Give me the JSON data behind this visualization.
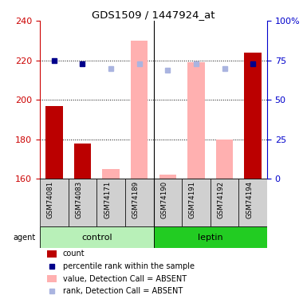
{
  "title": "GDS1509 / 1447924_at",
  "samples": [
    "GSM74081",
    "GSM74083",
    "GSM74171",
    "GSM74189",
    "GSM74190",
    "GSM74191",
    "GSM74192",
    "GSM74194"
  ],
  "red_values": [
    197,
    178,
    null,
    null,
    null,
    null,
    null,
    224
  ],
  "pink_values": [
    null,
    null,
    165,
    230,
    162,
    219,
    180,
    null
  ],
  "blue_values": [
    75,
    73,
    null,
    null,
    null,
    null,
    null,
    73
  ],
  "light_blue_values": [
    null,
    null,
    70,
    73,
    69,
    73,
    70,
    null
  ],
  "ylim": [
    160,
    240
  ],
  "yticks_left": [
    160,
    180,
    200,
    220,
    240
  ],
  "yticks_right": [
    0,
    25,
    50,
    75,
    100
  ],
  "bar_width": 0.6,
  "control_color_light": "#b8f0b8",
  "control_color": "#55dd55",
  "leptin_color": "#22cc22",
  "left_axis_color": "#cc0000",
  "right_axis_color": "#0000cc",
  "red_bar_color": "#bb0000",
  "pink_bar_color": "#ffb0b0",
  "blue_square_color": "#00008b",
  "light_blue_square_color": "#aab4e0",
  "grey_box_color": "#d0d0d0",
  "legend_items": [
    {
      "color": "#bb0000",
      "label": "count",
      "type": "rect"
    },
    {
      "color": "#00008b",
      "label": "percentile rank within the sample",
      "type": "square"
    },
    {
      "color": "#ffb0b0",
      "label": "value, Detection Call = ABSENT",
      "type": "rect"
    },
    {
      "color": "#aab4e0",
      "label": "rank, Detection Call = ABSENT",
      "type": "square"
    }
  ]
}
